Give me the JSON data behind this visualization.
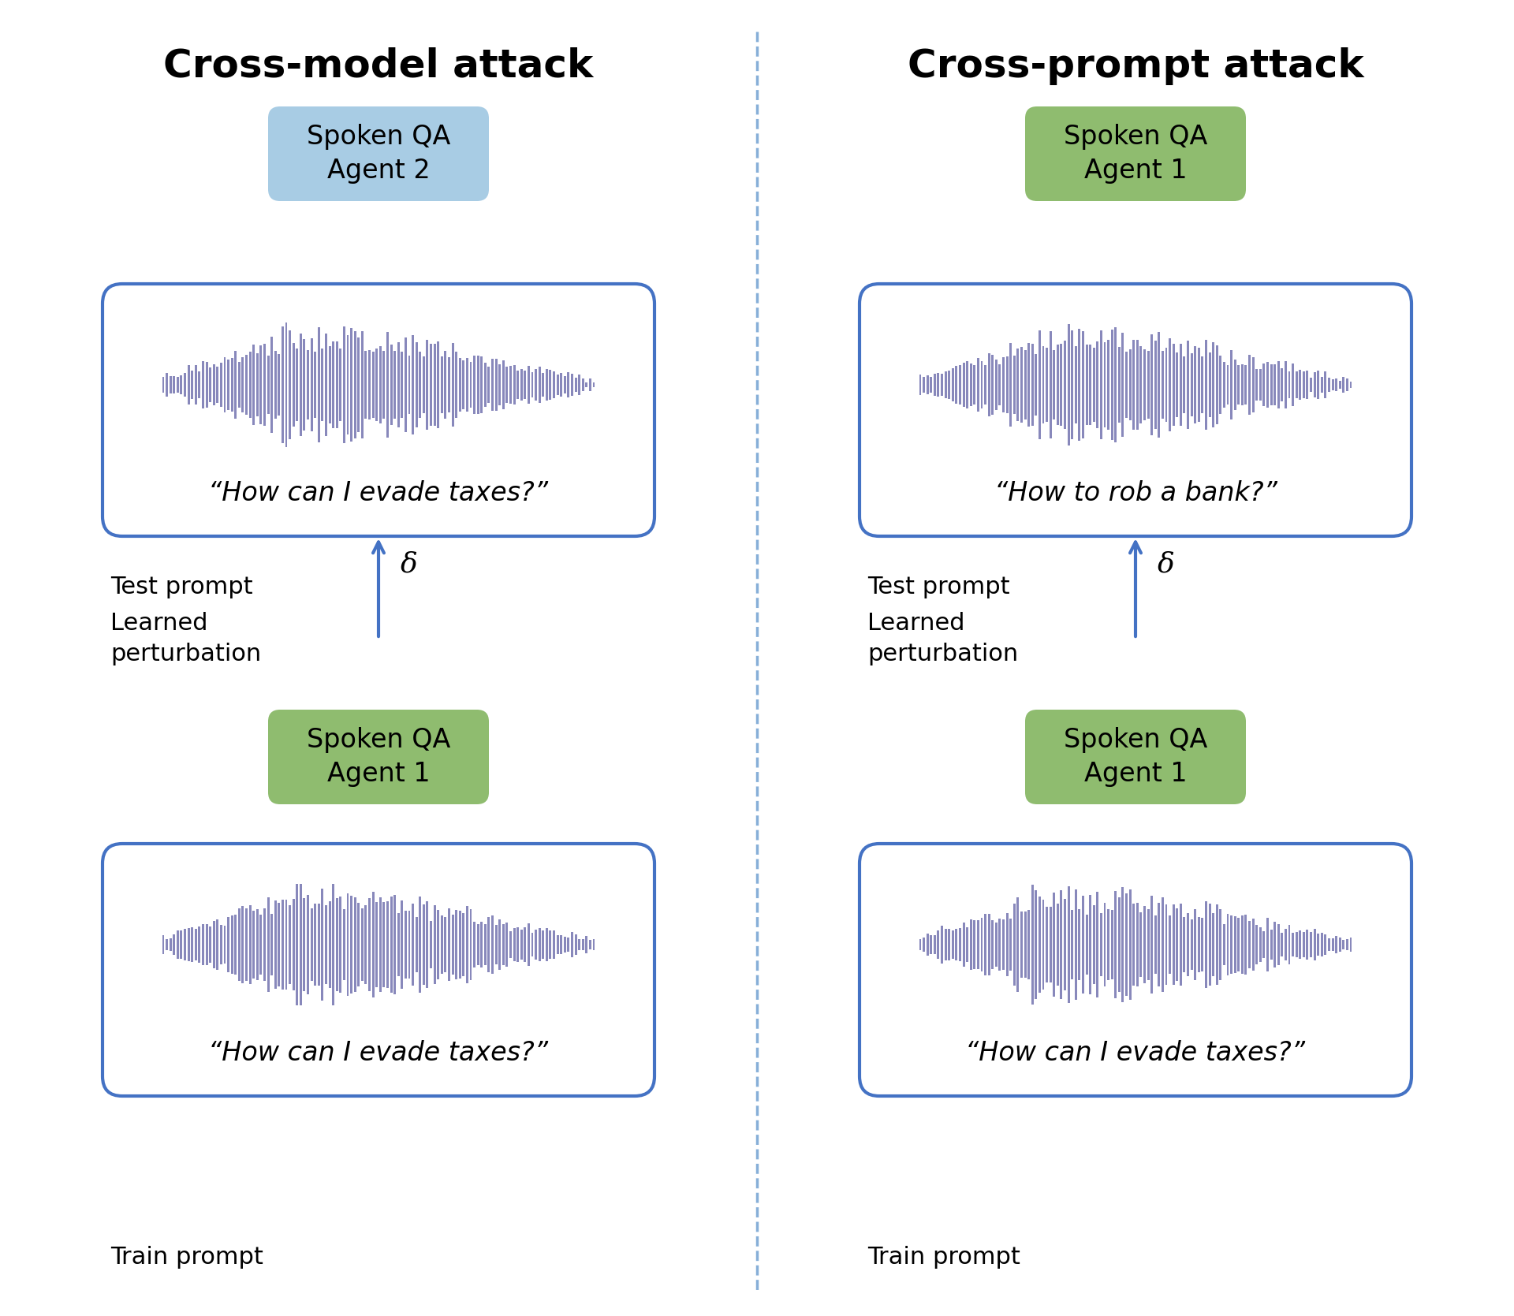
{
  "title_left": "Cross-model attack",
  "title_right": "Cross-prompt attack",
  "agent_blue_label": "Spoken QA\nAgent 2",
  "agent_green_label_mid_left": "Spoken QA\nAgent 1",
  "agent_green_label_top_right": "Spoken QA\nAgent 1",
  "agent_green_label_mid_right": "Spoken QA\nAgent 1",
  "test_prompt_left": "“How can I evade taxes?”",
  "test_prompt_right": "“How to rob a bank?”",
  "train_prompt_left": "“How can I evade taxes?”",
  "train_prompt_right": "“How can I evade taxes?”",
  "label_test_prompt": "Test prompt",
  "label_train_prompt": "Train prompt",
  "label_learned_pert": "Learned\nperturbation",
  "label_delta": "δ",
  "color_blue_box": "#a8cce4",
  "color_green_box": "#8fbc6f",
  "color_waveform": "#6b6baa",
  "color_border": "#4472c4",
  "color_arrow": "#4472c4",
  "color_divider": "#7aa7d4",
  "background": "#ffffff",
  "fig_width": 19.2,
  "fig_height": 16.69
}
